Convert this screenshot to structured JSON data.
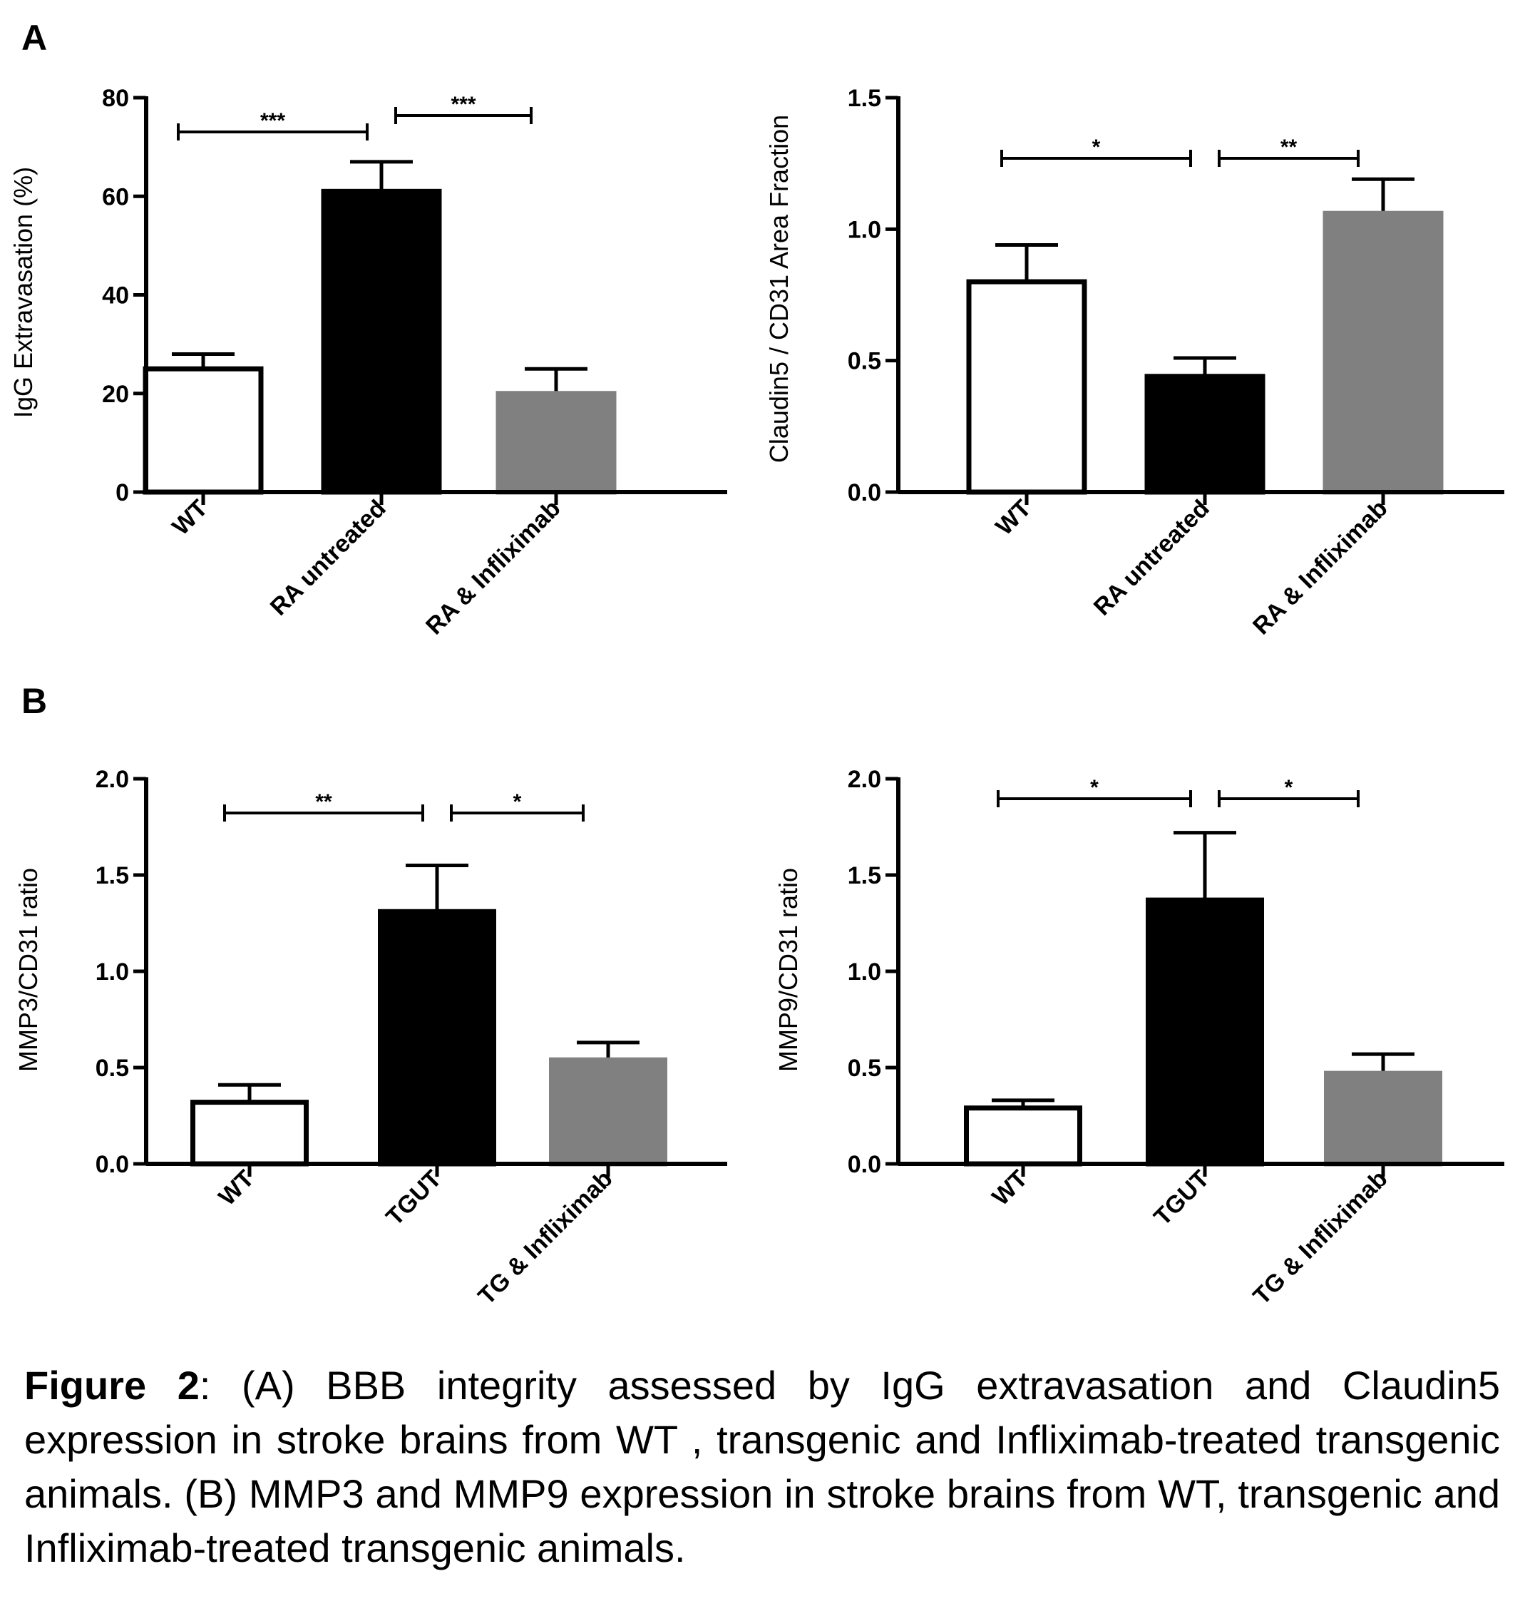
{
  "panel_labels": [
    "A",
    "B"
  ],
  "caption": {
    "label": "Figure 2",
    "text": ": (A) BBB integrity assessed by IgG extravasation and Claudin5 expression in stroke brains from WT , transgenic and Infliximab-treated transgenic animals. (B) MMP3 and MMP9 expression in stroke brains from WT, transgenic and Infliximab-treated transgenic animals."
  },
  "colors": {
    "wt": "#ffffff",
    "untreated": "#000000",
    "treated": "#808080",
    "axis": "#000000"
  },
  "chart_data": [
    {
      "type": "bar",
      "panel": "A",
      "categories": [
        "WT",
        "RA untreated",
        "RA & Infliximab"
      ],
      "values": [
        25,
        61,
        20
      ],
      "errors": [
        3,
        6,
        5
      ],
      "ylabel": "IgG Extravasation (%)",
      "ylim": [
        0,
        80
      ],
      "yticks": [
        "0",
        "20",
        "40",
        "60",
        "80"
      ],
      "significance": [
        {
          "from": 0,
          "to": 1,
          "label": "***"
        },
        {
          "from": 1,
          "to": 2,
          "label": "***"
        }
      ]
    },
    {
      "type": "bar",
      "panel": "A",
      "categories": [
        "WT",
        "RA untreated",
        "RA & Infliximab"
      ],
      "values": [
        0.8,
        0.44,
        1.06
      ],
      "errors": [
        0.14,
        0.07,
        0.13
      ],
      "ylabel": "Claudin5 / CD31 Area Fraction",
      "ylim": [
        0,
        1.5
      ],
      "yticks": [
        "0.0",
        "0.5",
        "1.0",
        "1.5"
      ],
      "significance": [
        {
          "from": 0,
          "to": 1,
          "label": "*"
        },
        {
          "from": 1,
          "to": 2,
          "label": "**"
        }
      ]
    },
    {
      "type": "bar",
      "panel": "B",
      "categories": [
        "WT",
        "TGUT",
        "TG & Infliximab"
      ],
      "values": [
        0.32,
        1.31,
        0.54
      ],
      "errors": [
        0.09,
        0.24,
        0.09
      ],
      "ylabel": "MMP3/CD31 ratio",
      "ylim": [
        0,
        2.0
      ],
      "yticks": [
        "0.0",
        "0.5",
        "1.0",
        "1.5",
        "2.0"
      ],
      "significance": [
        {
          "from": 0,
          "to": 1,
          "label": "**"
        },
        {
          "from": 1,
          "to": 2,
          "label": "*"
        }
      ]
    },
    {
      "type": "bar",
      "panel": "B",
      "categories": [
        "WT",
        "TGUT",
        "TG & Infliximab"
      ],
      "values": [
        0.29,
        1.37,
        0.47
      ],
      "errors": [
        0.04,
        0.35,
        0.1
      ],
      "ylabel": "MMP9/CD31 ratio",
      "ylim": [
        0,
        2.0
      ],
      "yticks": [
        "0.0",
        "0.5",
        "1.0",
        "1.5",
        "2.0"
      ],
      "significance": [
        {
          "from": 0,
          "to": 1,
          "label": "*"
        },
        {
          "from": 1,
          "to": 2,
          "label": "*"
        }
      ]
    }
  ]
}
